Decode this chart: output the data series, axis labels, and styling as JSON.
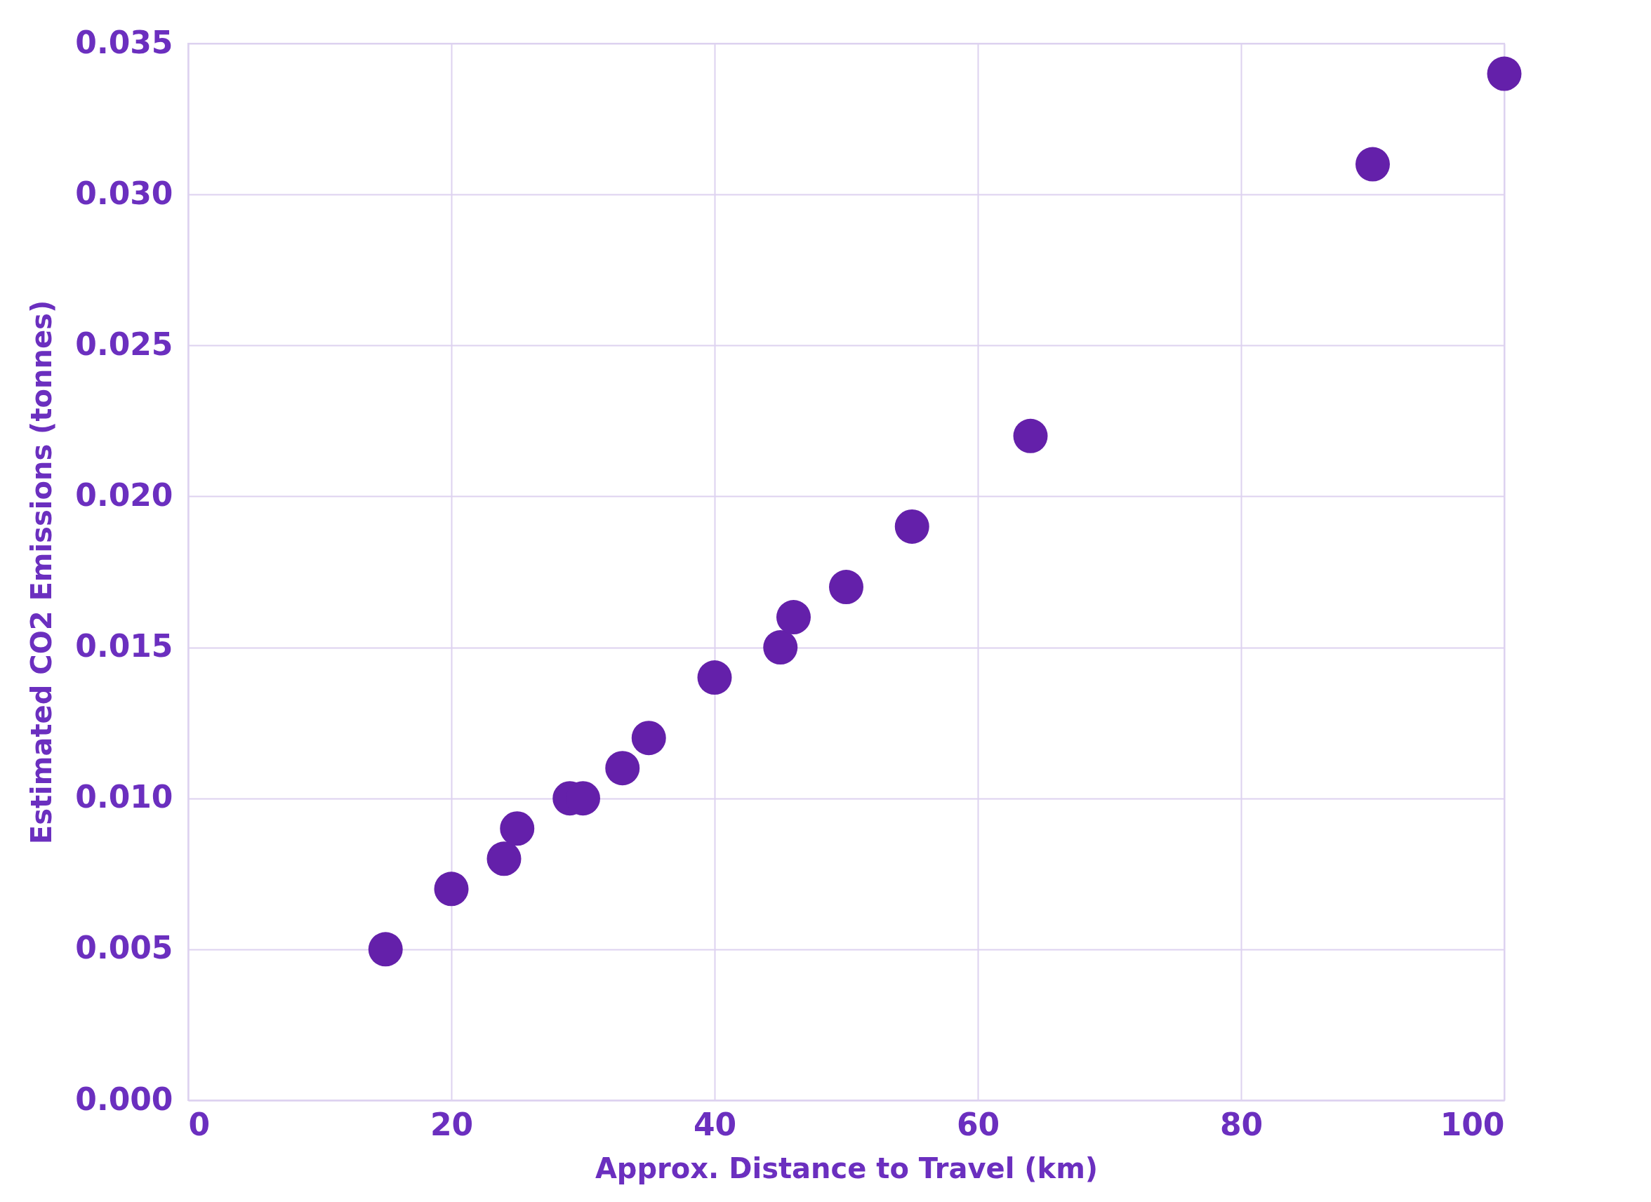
{
  "chart_data": {
    "type": "scatter",
    "xlabel": "Approx. Distance to Travel (km)",
    "ylabel": "Estimated CO2 Emissions (tonnes)",
    "x": [
      15,
      20,
      24,
      25,
      29,
      30,
      33,
      35,
      40,
      45,
      46,
      50,
      55,
      64,
      90,
      100
    ],
    "series": [
      {
        "color": "#6420aa",
        "values": [
          0.005,
          0.007,
          0.008,
          0.009,
          0.01,
          0.01,
          0.011,
          0.012,
          0.014,
          0.015,
          0.016,
          0.017,
          0.019,
          0.022,
          0.031,
          0.034
        ]
      }
    ],
    "xlim": [
      0,
      100
    ],
    "xticks": [
      0,
      20,
      40,
      60,
      80,
      100
    ],
    "ylim": [
      0,
      0.035
    ],
    "yticks": [
      {
        "value": 0,
        "label": "0.000"
      },
      {
        "value": 0.005,
        "label": "0.005"
      },
      {
        "value": 0.01,
        "label": "0.010"
      },
      {
        "value": 0.015,
        "label": "0.015"
      },
      {
        "value": 0.02,
        "label": "0.020"
      },
      {
        "value": 0.025,
        "label": "0.025"
      },
      {
        "value": 0.03,
        "label": "0.030"
      },
      {
        "value": 0.035,
        "label": "0.035"
      }
    ],
    "grid": true,
    "marker": "circle"
  }
}
